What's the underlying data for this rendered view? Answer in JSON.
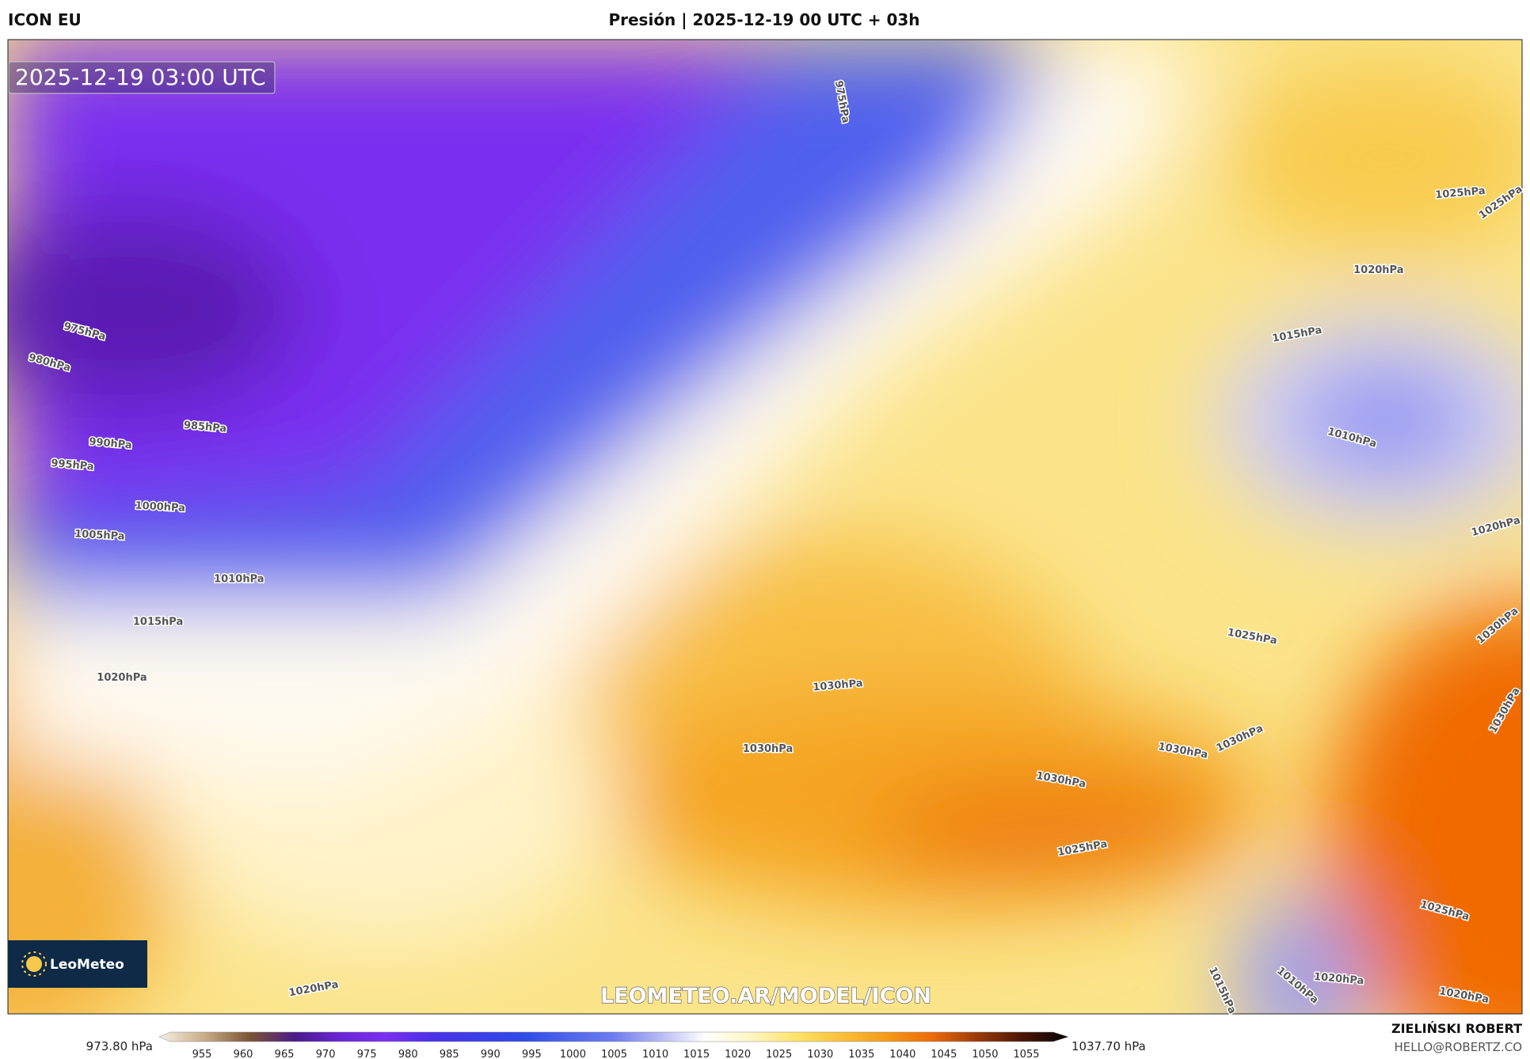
{
  "header": {
    "model": "ICON EU",
    "title": "Presión | 2025-12-19 00 UTC + 03h"
  },
  "map": {
    "timestamp": "2025-12-19 03:00 UTC",
    "watermark": "LEOMETEO.AR/MODEL/ICON",
    "logo": "LeoMeteo",
    "contour_labels": [
      "975hPa",
      "980hPa",
      "985hPa",
      "990hPa",
      "995hPa",
      "1000hPa",
      "1005hPa",
      "1010hPa",
      "1015hPa",
      "1020hPa",
      "1030hPa",
      "1030hPa",
      "1030hPa",
      "1025hPa",
      "1030hPa",
      "1030hPa",
      "1025hPa",
      "1030hPa",
      "1025hPa",
      "1020hPa",
      "1020hPa",
      "1010hPa",
      "1015hPa",
      "1020hPa",
      "1025hPa",
      "1025hPa",
      "1020hPa",
      "1015hPa",
      "1010hPa",
      "1020hPa",
      "1030hPa",
      "975hPa"
    ]
  },
  "colorbar": {
    "min_label": "973.80 hPa",
    "max_label": "1037.70 hPa",
    "ticks": [
      955,
      960,
      965,
      970,
      975,
      980,
      985,
      990,
      995,
      1000,
      1005,
      1010,
      1015,
      1020,
      1025,
      1030,
      1035,
      1040,
      1045,
      1050,
      1055
    ]
  },
  "footer": {
    "author": "ZIELIŃSKI ROBERT",
    "contact": "HELLO@ROBERTZ.CO"
  }
}
